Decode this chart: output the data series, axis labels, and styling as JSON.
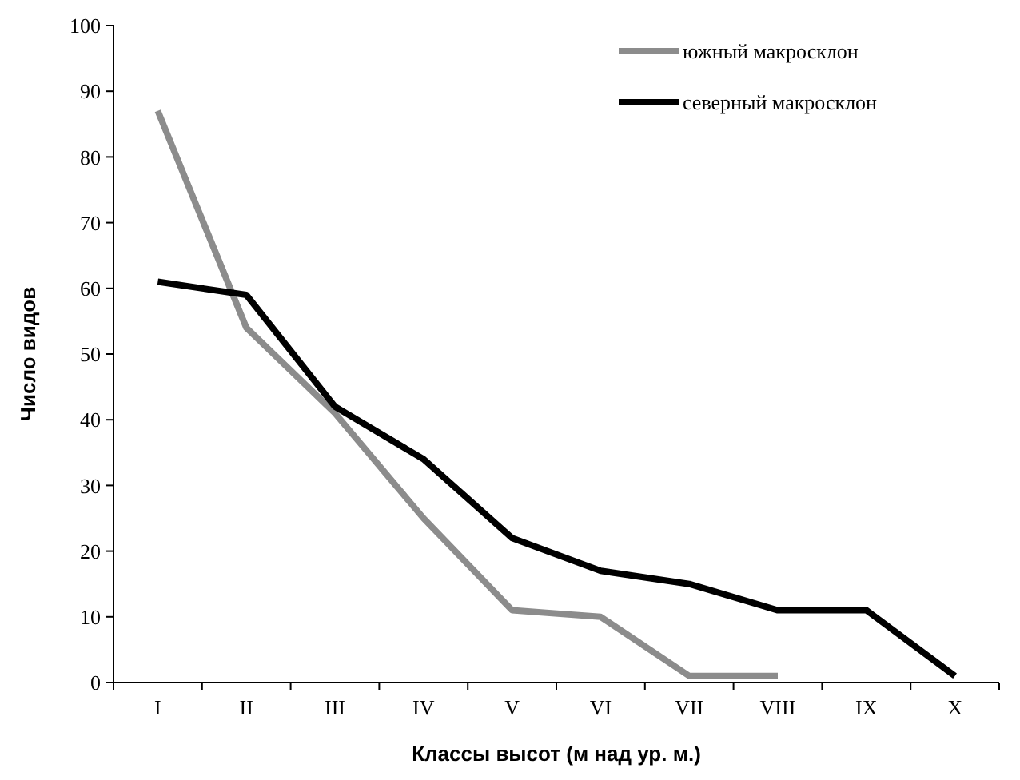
{
  "chart_data": {
    "type": "line",
    "xlabel": "Классы высот (м над ур. м.)",
    "ylabel": "Число видов",
    "categories": [
      "I",
      "II",
      "III",
      "IV",
      "V",
      "VI",
      "VII",
      "VIII",
      "IX",
      "X"
    ],
    "series": [
      {
        "name": "южный макросклон",
        "color": "#8c8c8c",
        "values": [
          87,
          54,
          41,
          25,
          11,
          10,
          1,
          1,
          null,
          null
        ]
      },
      {
        "name": "северный макросклон",
        "color": "#000000",
        "values": [
          61,
          59,
          42,
          34,
          22,
          17,
          15,
          11,
          11,
          1
        ]
      }
    ],
    "ylim": [
      0,
      100
    ],
    "yticks": [
      0,
      10,
      20,
      30,
      40,
      50,
      60,
      70,
      80,
      90,
      100
    ],
    "grid": false,
    "legend": "top right",
    "line_style": "solid"
  }
}
